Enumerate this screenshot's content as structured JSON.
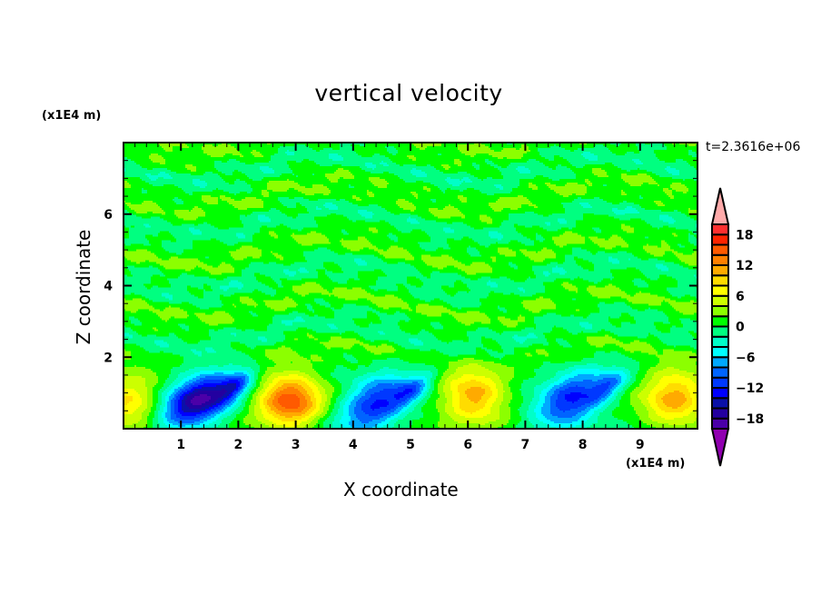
{
  "chart_data": {
    "type": "heatmap",
    "subtype": "filled-contour",
    "title": "vertical velocity",
    "xlabel": "X coordinate",
    "ylabel": "Z coordinate",
    "x_unit": "(x1E4 m)",
    "y_unit": "(x1E4 m)",
    "time_label": "t=2.3616e+06",
    "xlim": [
      0,
      10
    ],
    "ylim": [
      0,
      8
    ],
    "x_ticks": [
      "1",
      "2",
      "3",
      "4",
      "5",
      "6",
      "7",
      "8",
      "9"
    ],
    "y_ticks": [
      "2",
      "4",
      "6"
    ],
    "grid": false,
    "colorbar": {
      "position": "right",
      "levels": [
        -20,
        -18,
        -16,
        -14,
        -12,
        -10,
        -8,
        -6,
        -4,
        -2,
        0,
        2,
        4,
        6,
        8,
        10,
        12,
        14,
        16,
        18,
        20
      ],
      "tick_labels": [
        "18",
        "12",
        "6",
        "0",
        "-6",
        "-12",
        "-18"
      ],
      "colors_low_to_high": [
        "#4b00a8",
        "#2300a0",
        "#0a10a8",
        "#0000ff",
        "#0038ff",
        "#0064ff",
        "#00a8ff",
        "#00ffff",
        "#00ffc8",
        "#00ff80",
        "#00ff00",
        "#8cff00",
        "#ccff00",
        "#ffff00",
        "#ffdc00",
        "#ffaa00",
        "#ff8000",
        "#ff5a00",
        "#ff2400",
        "#ff3030"
      ],
      "over_color": "#ffaaaa",
      "under_color": "#9000b0"
    },
    "features": [
      {
        "kind": "updraft",
        "x": 0.1,
        "z": 0.8,
        "peak": 8
      },
      {
        "kind": "downdraft",
        "x": 1.3,
        "z": 0.8,
        "peak": -18
      },
      {
        "kind": "updraft",
        "x": 2.9,
        "z": 0.8,
        "peak": 15
      },
      {
        "kind": "downdraft",
        "x": 4.4,
        "z": 0.7,
        "peak": -13
      },
      {
        "kind": "updraft",
        "x": 6.1,
        "z": 0.9,
        "peak": 11
      },
      {
        "kind": "downdraft",
        "x": 7.8,
        "z": 0.8,
        "peak": -13
      },
      {
        "kind": "updraft",
        "x": 9.6,
        "z": 0.9,
        "peak": 11
      }
    ],
    "background_range": [
      -3,
      3
    ]
  }
}
